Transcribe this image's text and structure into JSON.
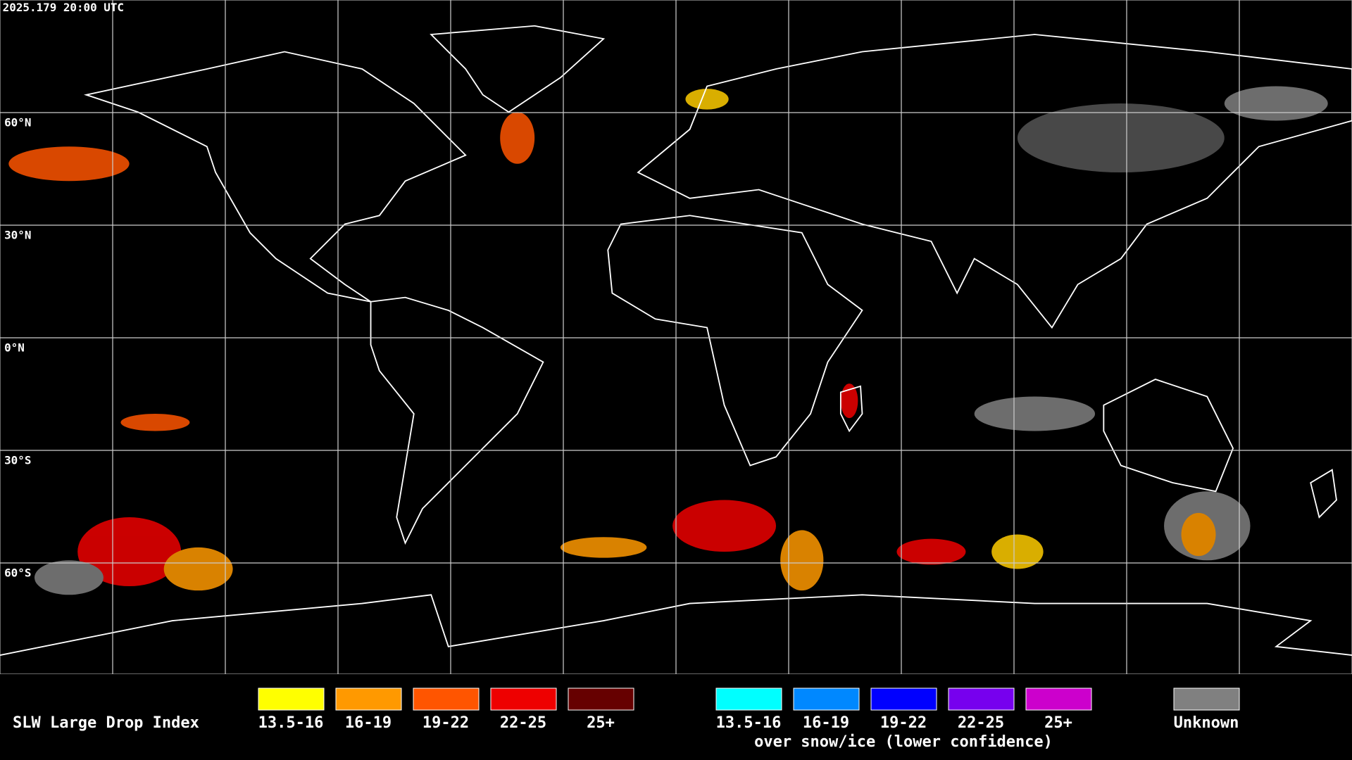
{
  "timestamp": "2025.179 20:00 UTC",
  "latitude_labels": [
    "60°N",
    "30°N",
    "0°N",
    "30°S",
    "60°S"
  ],
  "legend": {
    "title": "SLW Large Drop Index",
    "items": [
      {
        "label": "13.5-16",
        "color": "#ffff00"
      },
      {
        "label": "16-19",
        "color": "#ff9900"
      },
      {
        "label": "19-22",
        "color": "#ff5500"
      },
      {
        "label": "22-25",
        "color": "#ee0000"
      },
      {
        "label": "25+",
        "color": "#660000"
      }
    ],
    "snow_items": [
      {
        "label": "13.5-16",
        "color": "#00ffff"
      },
      {
        "label": "16-19",
        "color": "#0088ff"
      },
      {
        "label": "19-22",
        "color": "#0000ff"
      },
      {
        "label": "22-25",
        "color": "#7700ee"
      },
      {
        "label": "25+",
        "color": "#cc00cc"
      }
    ],
    "snow_caption": "over snow/ice (lower confidence)",
    "unknown": {
      "label": "Unknown",
      "color": "#808080"
    }
  }
}
